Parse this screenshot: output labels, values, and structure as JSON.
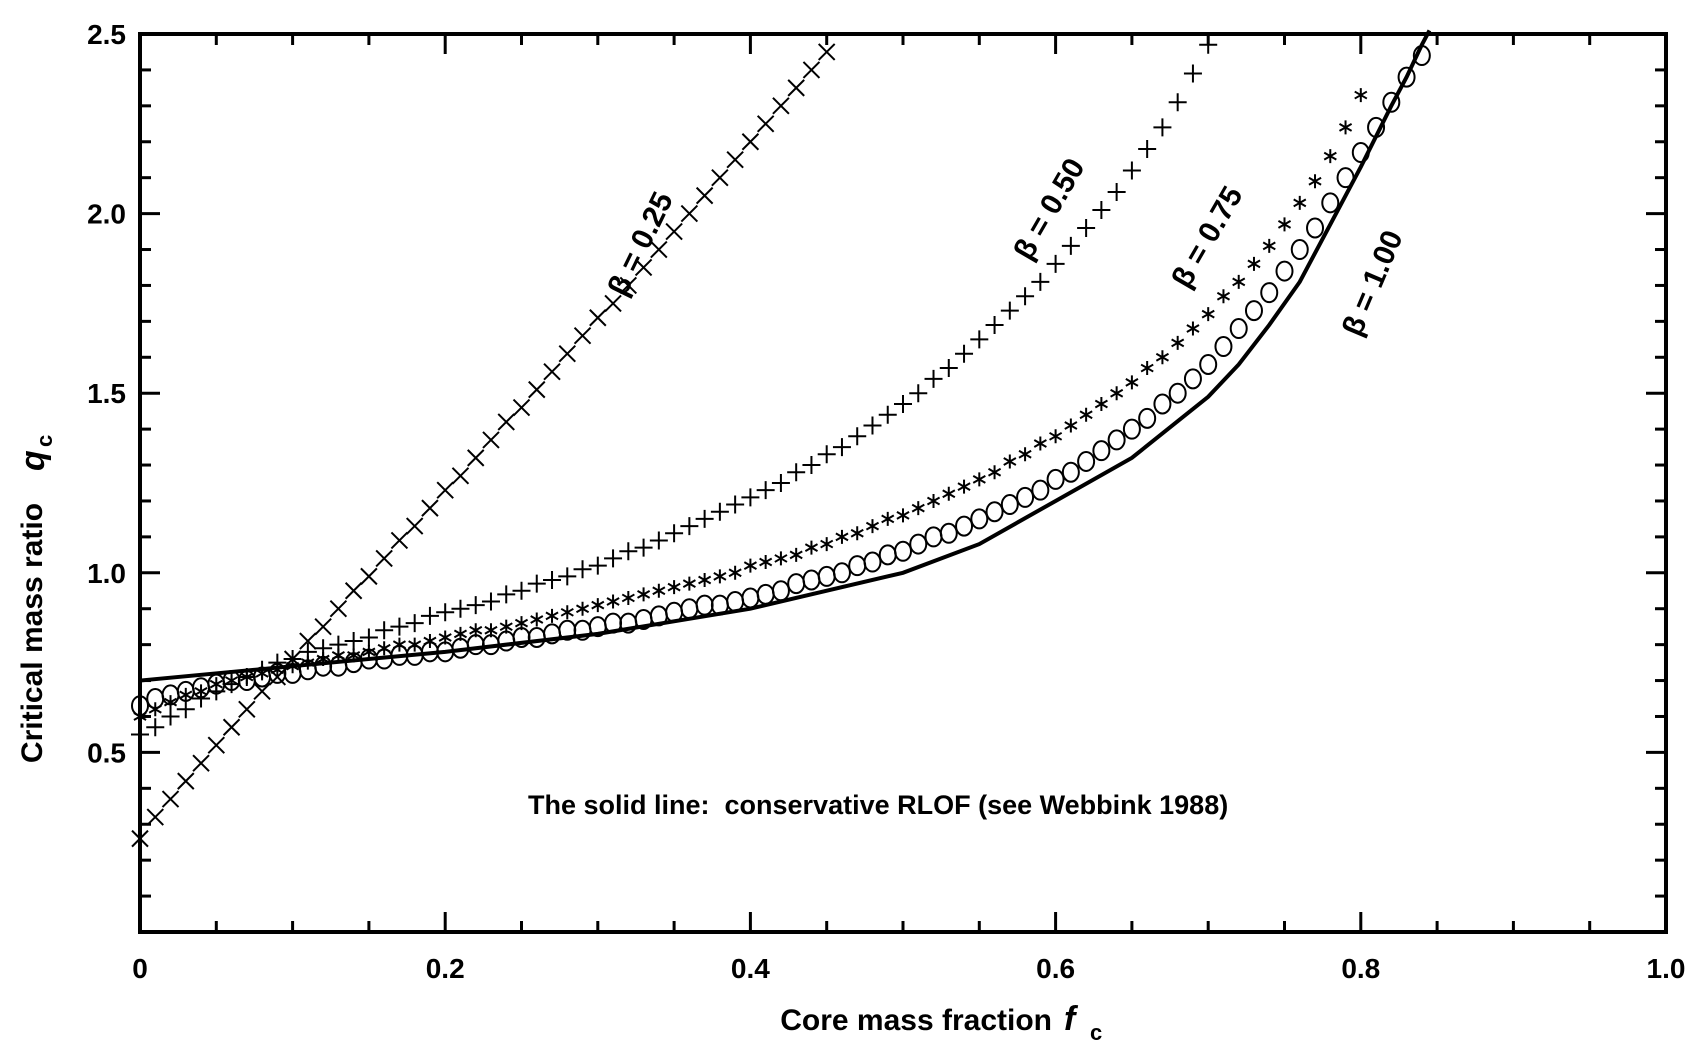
{
  "chart_data": {
    "type": "scatter",
    "title": "",
    "xlabel": "Core mass fraction",
    "xlabel_symbol": "f",
    "xlabel_subscript": "c",
    "ylabel": "Critical mass ratio",
    "ylabel_symbol": "q",
    "ylabel_subscript": "c",
    "xlim": [
      0,
      1.0
    ],
    "ylim": [
      0,
      2.5
    ],
    "x_ticks": [
      {
        "value": 0,
        "label": "0"
      },
      {
        "value": 0.2,
        "label": "0.2"
      },
      {
        "value": 0.4,
        "label": "0.4"
      },
      {
        "value": 0.6,
        "label": "0.6"
      },
      {
        "value": 0.8,
        "label": "0.8"
      },
      {
        "value": 1.0,
        "label": "1.0"
      }
    ],
    "y_ticks": [
      {
        "value": 0.5,
        "label": "0.5"
      },
      {
        "value": 1.0,
        "label": "1.0"
      },
      {
        "value": 1.5,
        "label": "1.5"
      },
      {
        "value": 2.0,
        "label": "2.0"
      },
      {
        "value": 2.5,
        "label": "2.5"
      }
    ],
    "grid": false,
    "annotation": "The solid line:  conservative RLOF (see Webbink 1988)",
    "series": [
      {
        "name": "β = 0.25",
        "marker": "x",
        "x": [
          0,
          0.01,
          0.02,
          0.03,
          0.04,
          0.05,
          0.06,
          0.07,
          0.08,
          0.09,
          0.1,
          0.11,
          0.12,
          0.13,
          0.14,
          0.15,
          0.16,
          0.17,
          0.18,
          0.19,
          0.2,
          0.21,
          0.22,
          0.23,
          0.24,
          0.25,
          0.26,
          0.27,
          0.28,
          0.29,
          0.3,
          0.31,
          0.32,
          0.33,
          0.34,
          0.35,
          0.36,
          0.37,
          0.38,
          0.39,
          0.4,
          0.41,
          0.42,
          0.43,
          0.44,
          0.45
        ],
        "y": [
          0.26,
          0.32,
          0.37,
          0.42,
          0.47,
          0.52,
          0.57,
          0.62,
          0.67,
          0.71,
          0.76,
          0.81,
          0.85,
          0.9,
          0.95,
          0.99,
          1.04,
          1.09,
          1.13,
          1.18,
          1.23,
          1.27,
          1.32,
          1.37,
          1.42,
          1.46,
          1.51,
          1.56,
          1.61,
          1.66,
          1.71,
          1.75,
          1.8,
          1.85,
          1.9,
          1.95,
          2.0,
          2.05,
          2.1,
          2.15,
          2.2,
          2.25,
          2.3,
          2.35,
          2.4,
          2.45
        ]
      },
      {
        "name": "β = 0.50",
        "marker": "+",
        "x": [
          0,
          0.01,
          0.02,
          0.03,
          0.04,
          0.05,
          0.06,
          0.07,
          0.08,
          0.09,
          0.1,
          0.11,
          0.12,
          0.13,
          0.14,
          0.15,
          0.16,
          0.17,
          0.18,
          0.19,
          0.2,
          0.21,
          0.22,
          0.23,
          0.24,
          0.25,
          0.26,
          0.27,
          0.28,
          0.29,
          0.3,
          0.31,
          0.32,
          0.33,
          0.34,
          0.35,
          0.36,
          0.37,
          0.38,
          0.39,
          0.4,
          0.41,
          0.42,
          0.43,
          0.44,
          0.45,
          0.46,
          0.47,
          0.48,
          0.49,
          0.5,
          0.51,
          0.52,
          0.53,
          0.54,
          0.55,
          0.56,
          0.57,
          0.58,
          0.59,
          0.6,
          0.61,
          0.62,
          0.63,
          0.64,
          0.65,
          0.66,
          0.67,
          0.68,
          0.69,
          0.7
        ],
        "y": [
          0.55,
          0.57,
          0.6,
          0.62,
          0.65,
          0.67,
          0.69,
          0.71,
          0.73,
          0.75,
          0.76,
          0.78,
          0.79,
          0.8,
          0.81,
          0.82,
          0.84,
          0.85,
          0.86,
          0.88,
          0.89,
          0.9,
          0.91,
          0.92,
          0.94,
          0.95,
          0.97,
          0.98,
          0.99,
          1.01,
          1.02,
          1.04,
          1.06,
          1.07,
          1.09,
          1.11,
          1.13,
          1.15,
          1.17,
          1.19,
          1.21,
          1.23,
          1.25,
          1.28,
          1.3,
          1.33,
          1.35,
          1.38,
          1.41,
          1.44,
          1.47,
          1.5,
          1.54,
          1.57,
          1.61,
          1.65,
          1.69,
          1.73,
          1.77,
          1.81,
          1.86,
          1.91,
          1.96,
          2.01,
          2.06,
          2.12,
          2.18,
          2.24,
          2.31,
          2.39,
          2.47
        ]
      },
      {
        "name": "β = 0.75",
        "marker": "*",
        "x": [
          0,
          0.01,
          0.02,
          0.03,
          0.04,
          0.05,
          0.06,
          0.07,
          0.08,
          0.09,
          0.1,
          0.11,
          0.12,
          0.13,
          0.14,
          0.15,
          0.16,
          0.17,
          0.18,
          0.19,
          0.2,
          0.21,
          0.22,
          0.23,
          0.24,
          0.25,
          0.26,
          0.27,
          0.28,
          0.29,
          0.3,
          0.31,
          0.32,
          0.33,
          0.34,
          0.35,
          0.36,
          0.37,
          0.38,
          0.39,
          0.4,
          0.41,
          0.42,
          0.43,
          0.44,
          0.45,
          0.46,
          0.47,
          0.48,
          0.49,
          0.5,
          0.51,
          0.52,
          0.53,
          0.54,
          0.55,
          0.56,
          0.57,
          0.58,
          0.59,
          0.6,
          0.61,
          0.62,
          0.63,
          0.64,
          0.65,
          0.66,
          0.67,
          0.68,
          0.69,
          0.7,
          0.71,
          0.72,
          0.73,
          0.74,
          0.75,
          0.76,
          0.77,
          0.78,
          0.79,
          0.8
        ],
        "y": [
          0.6,
          0.62,
          0.64,
          0.66,
          0.67,
          0.69,
          0.7,
          0.71,
          0.72,
          0.73,
          0.74,
          0.75,
          0.76,
          0.77,
          0.77,
          0.78,
          0.79,
          0.8,
          0.8,
          0.81,
          0.82,
          0.83,
          0.84,
          0.84,
          0.85,
          0.86,
          0.87,
          0.88,
          0.89,
          0.9,
          0.91,
          0.92,
          0.93,
          0.94,
          0.95,
          0.96,
          0.97,
          0.98,
          0.99,
          1.0,
          1.02,
          1.03,
          1.04,
          1.05,
          1.07,
          1.08,
          1.1,
          1.11,
          1.13,
          1.15,
          1.16,
          1.18,
          1.2,
          1.22,
          1.24,
          1.26,
          1.28,
          1.31,
          1.33,
          1.36,
          1.38,
          1.41,
          1.44,
          1.47,
          1.5,
          1.53,
          1.57,
          1.6,
          1.64,
          1.68,
          1.72,
          1.77,
          1.81,
          1.86,
          1.91,
          1.97,
          2.03,
          2.09,
          2.16,
          2.24,
          2.33
        ]
      },
      {
        "name": "β = 1.00",
        "marker": "o",
        "x": [
          0,
          0.01,
          0.02,
          0.03,
          0.04,
          0.05,
          0.06,
          0.07,
          0.08,
          0.09,
          0.1,
          0.11,
          0.12,
          0.13,
          0.14,
          0.15,
          0.16,
          0.17,
          0.18,
          0.19,
          0.2,
          0.21,
          0.22,
          0.23,
          0.24,
          0.25,
          0.26,
          0.27,
          0.28,
          0.29,
          0.3,
          0.31,
          0.32,
          0.33,
          0.34,
          0.35,
          0.36,
          0.37,
          0.38,
          0.39,
          0.4,
          0.41,
          0.42,
          0.43,
          0.44,
          0.45,
          0.46,
          0.47,
          0.48,
          0.49,
          0.5,
          0.51,
          0.52,
          0.53,
          0.54,
          0.55,
          0.56,
          0.57,
          0.58,
          0.59,
          0.6,
          0.61,
          0.62,
          0.63,
          0.64,
          0.65,
          0.66,
          0.67,
          0.68,
          0.69,
          0.7,
          0.71,
          0.72,
          0.73,
          0.74,
          0.75,
          0.76,
          0.77,
          0.78,
          0.79,
          0.8,
          0.81,
          0.82,
          0.83,
          0.84
        ],
        "y": [
          0.63,
          0.65,
          0.66,
          0.67,
          0.68,
          0.69,
          0.7,
          0.7,
          0.71,
          0.72,
          0.72,
          0.73,
          0.74,
          0.74,
          0.75,
          0.76,
          0.76,
          0.77,
          0.77,
          0.78,
          0.78,
          0.79,
          0.8,
          0.8,
          0.81,
          0.82,
          0.82,
          0.83,
          0.84,
          0.84,
          0.85,
          0.86,
          0.86,
          0.87,
          0.88,
          0.89,
          0.9,
          0.91,
          0.91,
          0.92,
          0.93,
          0.94,
          0.95,
          0.97,
          0.98,
          0.99,
          1.0,
          1.02,
          1.03,
          1.05,
          1.06,
          1.08,
          1.1,
          1.11,
          1.13,
          1.15,
          1.17,
          1.19,
          1.21,
          1.23,
          1.26,
          1.28,
          1.31,
          1.34,
          1.37,
          1.4,
          1.43,
          1.47,
          1.5,
          1.54,
          1.58,
          1.63,
          1.68,
          1.73,
          1.78,
          1.84,
          1.9,
          1.96,
          2.03,
          2.1,
          2.17,
          2.24,
          2.31,
          2.38,
          2.44
        ]
      },
      {
        "name": "conservative RLOF",
        "marker": "line",
        "x": [
          0,
          0.1,
          0.2,
          0.3,
          0.4,
          0.5,
          0.55,
          0.6,
          0.65,
          0.7,
          0.72,
          0.74,
          0.76,
          0.78,
          0.8,
          0.82,
          0.83,
          0.84,
          0.845
        ],
        "y": [
          0.7,
          0.74,
          0.78,
          0.83,
          0.9,
          1.0,
          1.08,
          1.2,
          1.32,
          1.49,
          1.58,
          1.69,
          1.81,
          1.97,
          2.13,
          2.3,
          2.38,
          2.47,
          2.51
        ]
      }
    ]
  }
}
